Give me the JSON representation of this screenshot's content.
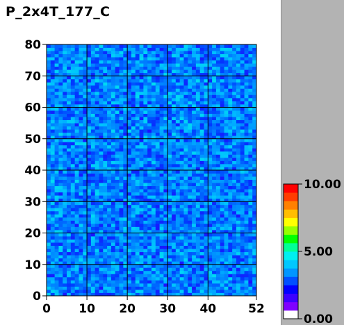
{
  "chart_data": {
    "type": "heatmap",
    "title": "P_2x4T_177_C",
    "xlabel": "",
    "ylabel": "",
    "x_range": [
      0,
      52
    ],
    "y_range": [
      0,
      80
    ],
    "x_ticks": [
      "0",
      "10",
      "20",
      "30",
      "40",
      "52"
    ],
    "y_ticks": [
      "0",
      "10",
      "20",
      "30",
      "40",
      "50",
      "60",
      "70",
      "80"
    ],
    "colorbar": {
      "range": [
        0.0,
        10.0
      ],
      "ticks": [
        "0.00",
        "5.00",
        "10.00"
      ],
      "palette": [
        "#ffffff",
        "#7f00ff",
        "#3c00ff",
        "#0000ff",
        "#0050ff",
        "#0096ff",
        "#00c8ff",
        "#00f0f0",
        "#00ff96",
        "#00ff00",
        "#96ff00",
        "#ffff00",
        "#ffbe00",
        "#ff8000",
        "#ff3c00",
        "#ff0000"
      ]
    },
    "grid": true,
    "value_description": "cell values roughly uniform, ~1.5-3.5 on 0-10 scale",
    "value_mean": 2.4,
    "value_spread": 1.0
  },
  "colors": {
    "background": "#ffffff",
    "side_panel": "#b3b3b3",
    "grid_line": "#000000"
  }
}
